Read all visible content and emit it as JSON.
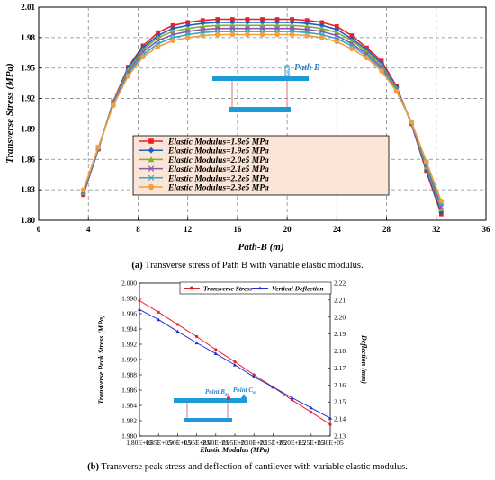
{
  "chart_data": [
    {
      "type": "line",
      "xlabel": "Path-B (m)",
      "ylabel": "Transverse Stress (MPa)",
      "xlim": [
        0,
        36
      ],
      "ylim": [
        1.8,
        2.01
      ],
      "xticks": [
        0,
        4,
        8,
        12,
        16,
        20,
        24,
        28,
        32,
        36
      ],
      "yticks": [
        "1.80",
        "1.83",
        "1.86",
        "1.89",
        "1.92",
        "1.95",
        "1.98",
        "2.01"
      ],
      "grid": true,
      "legend_position": "lower-center",
      "annotation": "Path B",
      "x": [
        3.6,
        4.8,
        6.0,
        7.2,
        8.4,
        9.6,
        10.8,
        12.0,
        13.2,
        14.4,
        15.6,
        16.8,
        18.0,
        19.2,
        20.4,
        21.6,
        22.8,
        24.0,
        25.2,
        26.4,
        27.6,
        28.8,
        30.0,
        31.2,
        32.4
      ],
      "series": [
        {
          "name": "Elastic Modulus=1.8e5 MPa",
          "color": "#e8202a",
          "marker": "square",
          "values": [
            1.825,
            1.87,
            1.917,
            1.951,
            1.972,
            1.985,
            1.992,
            1.995,
            1.997,
            1.998,
            1.998,
            1.998,
            1.998,
            1.998,
            1.998,
            1.997,
            1.995,
            1.991,
            1.982,
            1.97,
            1.957,
            1.932,
            1.895,
            1.848,
            1.806
          ]
        },
        {
          "name": "Elastic Modulus=1.9e5 MPa",
          "color": "#2060c0",
          "marker": "diamond",
          "values": [
            1.826,
            1.87,
            1.916,
            1.95,
            1.97,
            1.982,
            1.989,
            1.992,
            1.994,
            1.995,
            1.995,
            1.995,
            1.995,
            1.995,
            1.995,
            1.994,
            1.992,
            1.988,
            1.979,
            1.968,
            1.955,
            1.931,
            1.895,
            1.85,
            1.808
          ]
        },
        {
          "name": "Elastic Modulus=2.0e5 MPa",
          "color": "#80b030",
          "marker": "triangle",
          "values": [
            1.827,
            1.871,
            1.916,
            1.948,
            1.968,
            1.98,
            1.986,
            1.989,
            1.991,
            1.992,
            1.992,
            1.992,
            1.992,
            1.992,
            1.992,
            1.991,
            1.989,
            1.985,
            1.977,
            1.966,
            1.953,
            1.93,
            1.896,
            1.852,
            1.811
          ]
        },
        {
          "name": "Elastic Modulus=2.1e5 MPa",
          "color": "#8a58b0",
          "marker": "x",
          "values": [
            1.828,
            1.871,
            1.915,
            1.946,
            1.966,
            1.977,
            1.983,
            1.986,
            1.988,
            1.989,
            1.989,
            1.989,
            1.989,
            1.989,
            1.989,
            1.988,
            1.986,
            1.982,
            1.974,
            1.964,
            1.951,
            1.929,
            1.896,
            1.854,
            1.813
          ]
        },
        {
          "name": "Elastic Modulus=2.2e5 MPa",
          "color": "#30a8c8",
          "marker": "star",
          "values": [
            1.829,
            1.872,
            1.914,
            1.944,
            1.963,
            1.974,
            1.98,
            1.983,
            1.985,
            1.986,
            1.986,
            1.986,
            1.986,
            1.986,
            1.986,
            1.985,
            1.983,
            1.979,
            1.972,
            1.962,
            1.949,
            1.928,
            1.897,
            1.856,
            1.816
          ]
        },
        {
          "name": "Elastic Modulus=2.3e5 MPa",
          "color": "#f2a040",
          "marker": "circle",
          "values": [
            1.83,
            1.872,
            1.913,
            1.942,
            1.961,
            1.971,
            1.977,
            1.98,
            1.982,
            1.983,
            1.983,
            1.983,
            1.983,
            1.983,
            1.983,
            1.982,
            1.98,
            1.976,
            1.969,
            1.96,
            1.947,
            1.927,
            1.897,
            1.858,
            1.819
          ]
        }
      ]
    },
    {
      "type": "line",
      "xlabel": "Elastic Modulus (MPa)",
      "ylabel": "Transverse Peak Stress (MPa)",
      "y2label": "Deflection (mm)",
      "xlim": [
        180000,
        230000
      ],
      "ylim": [
        1.98,
        2.0
      ],
      "y2lim": [
        2.13,
        2.22
      ],
      "xticks": [
        "1.80E+05",
        "1.85E+05",
        "1.90E+05",
        "1.95E+05",
        "2.00E+05",
        "2.05E+05",
        "2.10E+05",
        "2.15E+05",
        "2.20E+05",
        "2.25E+05",
        "2.30E+05"
      ],
      "yticks": [
        "1.980",
        "1.982",
        "1.984",
        "1.986",
        "1.988",
        "1.990",
        "1.992",
        "1.994",
        "1.996",
        "1.998",
        "2.000"
      ],
      "y2ticks": [
        "2.13",
        "2.14",
        "2.15",
        "2.16",
        "2.17",
        "2.18",
        "2.19",
        "2.20",
        "2.21",
        "2.22"
      ],
      "grid": false,
      "legend_position": "top",
      "annotations": [
        "Point B",
        "Point C"
      ],
      "annotation_subscript": "m",
      "x": [
        180000,
        185000,
        190000,
        195000,
        200000,
        205000,
        210000,
        215000,
        220000,
        225000,
        230000
      ],
      "series": [
        {
          "name": "Transverse Stress",
          "color": "#e8202a",
          "axis": "left",
          "values": [
            1.9977,
            1.9962,
            1.9946,
            1.993,
            1.9913,
            1.9897,
            1.988,
            1.9864,
            1.9847,
            1.9831,
            1.9815
          ]
        },
        {
          "name": "Vertical Deflection",
          "color": "#2030d0",
          "axis": "right",
          "values": [
            2.2045,
            2.1985,
            2.1915,
            2.1848,
            2.1785,
            2.1718,
            2.1648,
            2.1588,
            2.1525,
            2.1465,
            2.1405
          ]
        }
      ]
    }
  ],
  "captions": {
    "a_label": "(a)",
    "a_text": " Transverse stress of Path B with variable elastic modulus.",
    "b_label": "(b)",
    "b_text": " Transverse peak stress and deflection of cantilever with variable elastic modulus."
  },
  "colors": {
    "beam": "#1e9ad6",
    "support": "#e07070",
    "legend_bg": "#fbe5d6",
    "annotation": "#2a7fc4"
  }
}
